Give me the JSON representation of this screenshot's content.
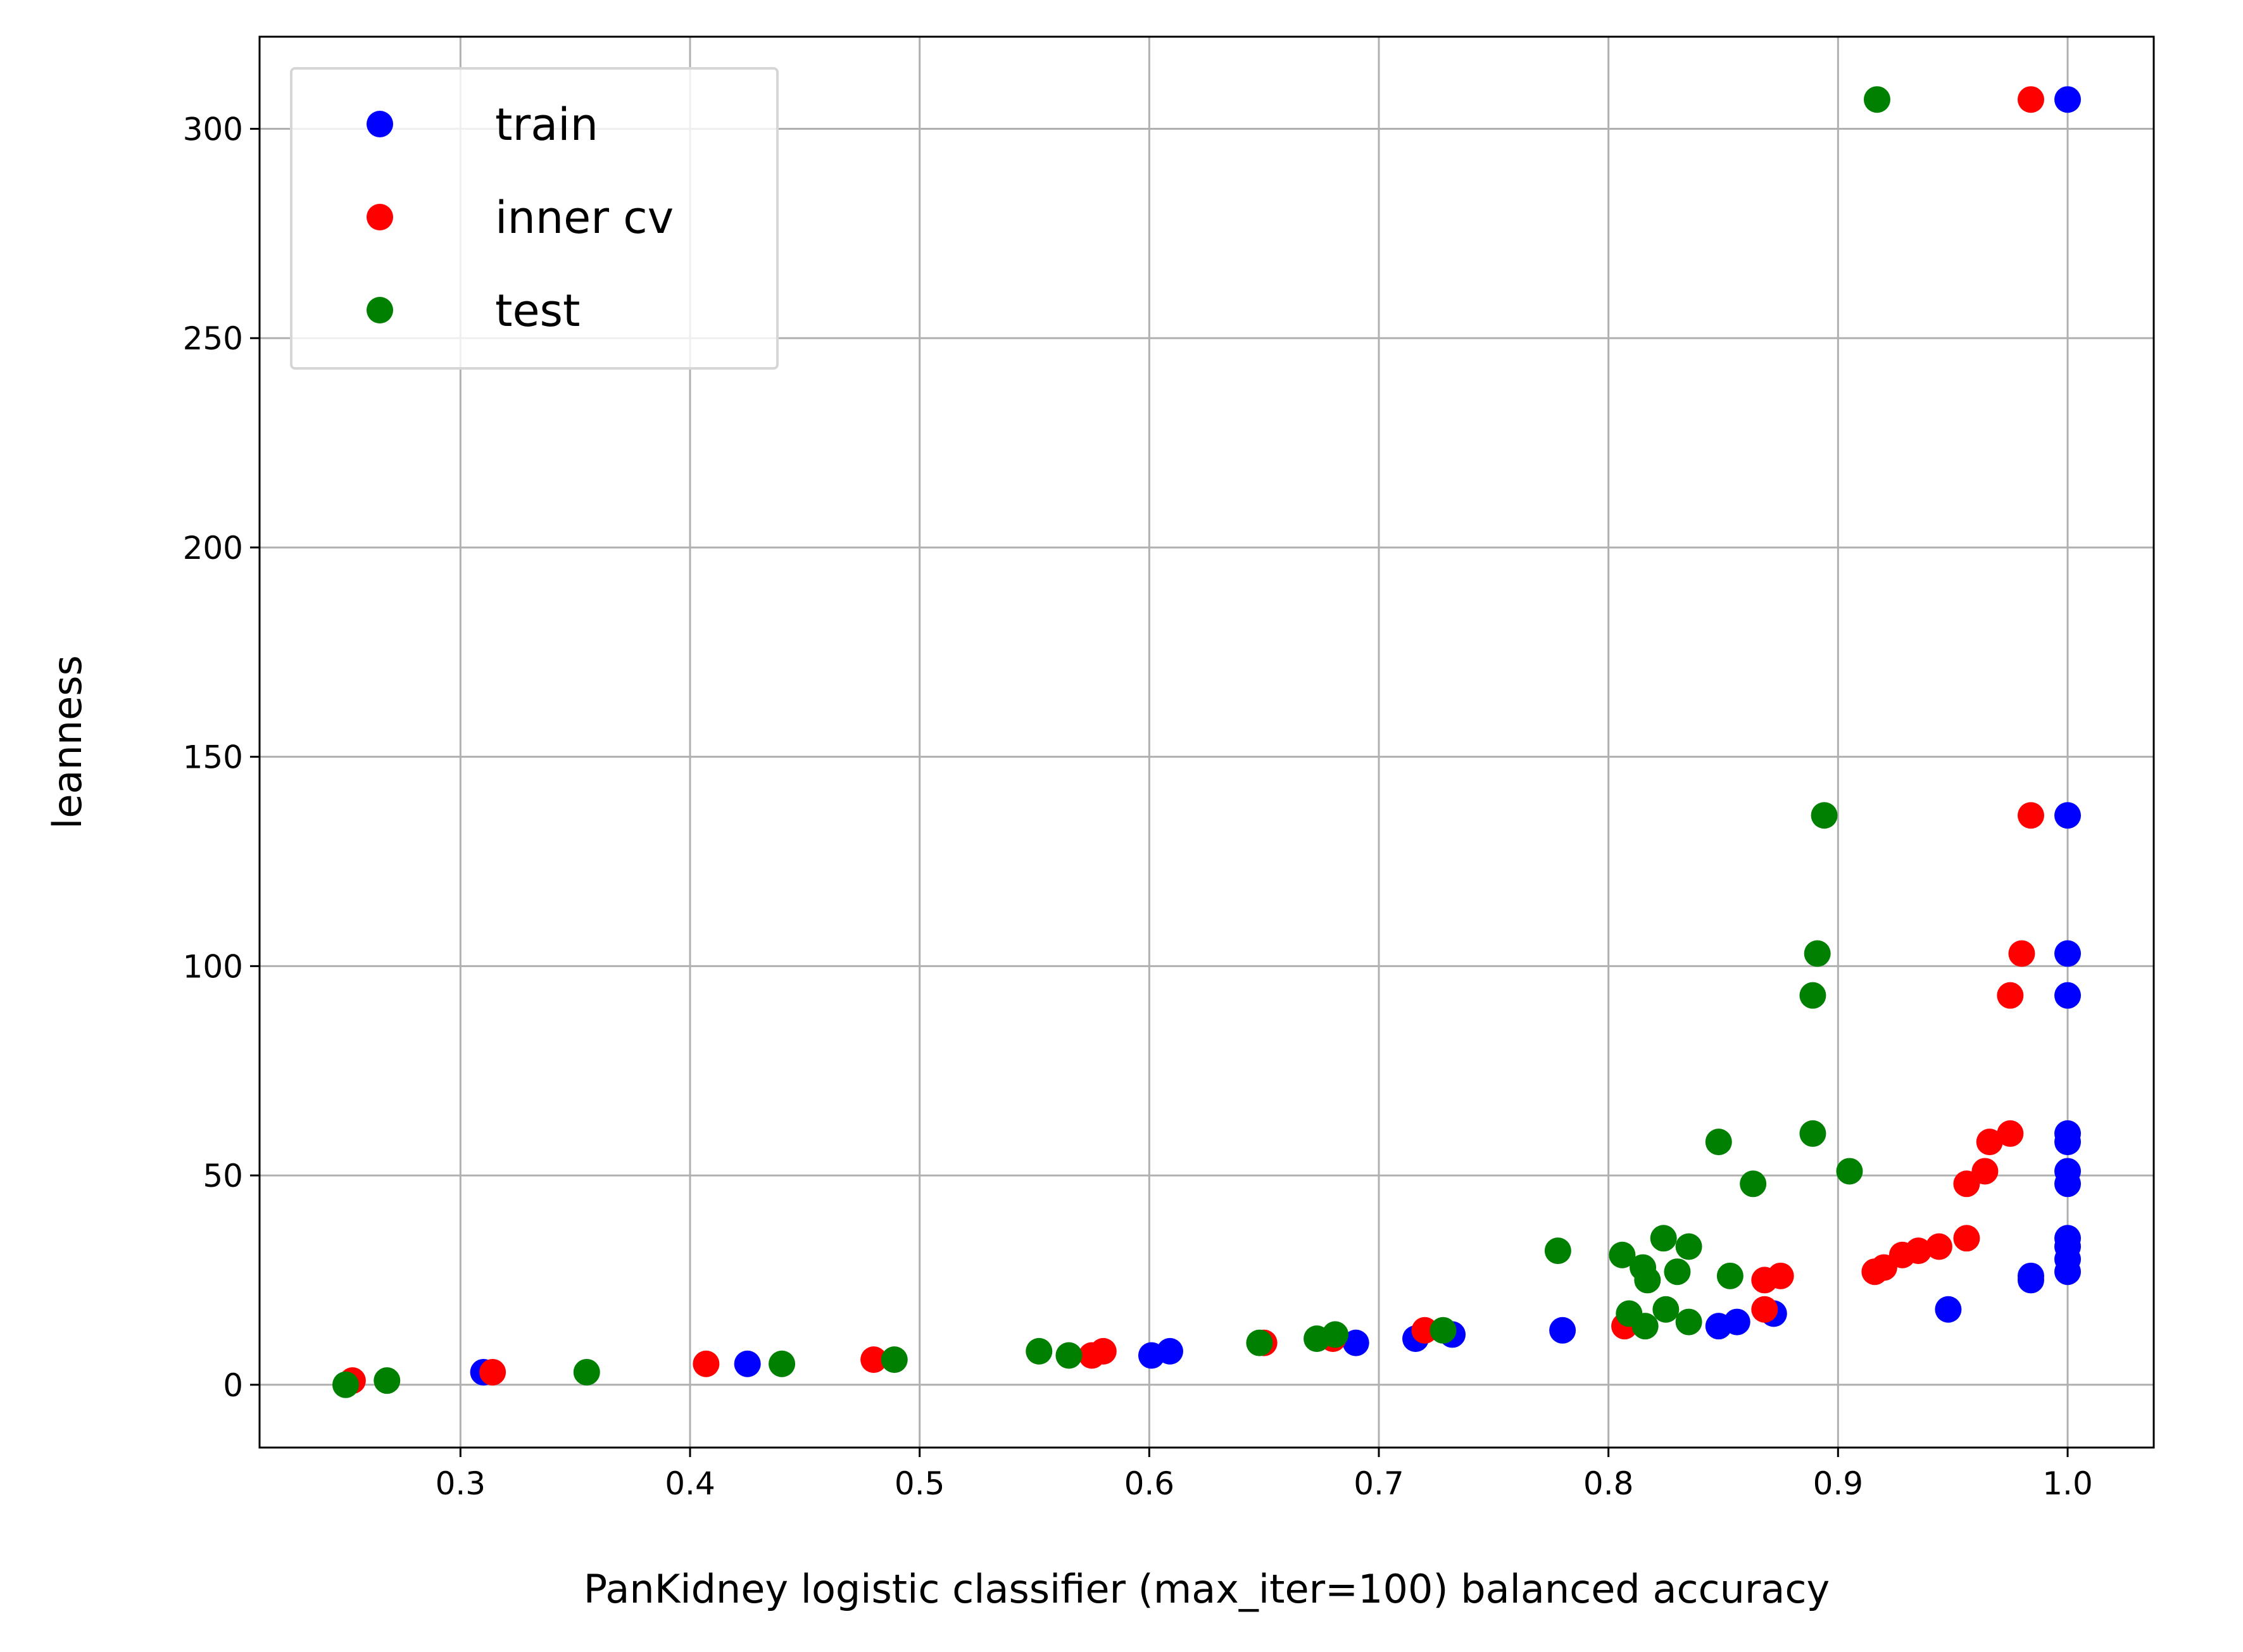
{
  "chart_data": {
    "type": "scatter",
    "title": "",
    "xlabel": "PanKidney logistic classifier (max_iter=100) balanced accuracy",
    "ylabel": "leanness",
    "xlim": [
      0.2125,
      1.0375
    ],
    "ylim": [
      -15,
      322
    ],
    "xticks": [
      "0.3",
      "0.4",
      "0.5",
      "0.6",
      "0.7",
      "0.8",
      "0.9",
      "1.0"
    ],
    "yticks": [
      "0",
      "50",
      "100",
      "150",
      "200",
      "250",
      "300"
    ],
    "grid": true,
    "legend_position": "top-left",
    "series": [
      {
        "name": "train",
        "color": "#0000ff",
        "points": [
          [
            0.31,
            3
          ],
          [
            0.425,
            5
          ],
          [
            0.601,
            7
          ],
          [
            0.609,
            8
          ],
          [
            0.69,
            10
          ],
          [
            0.716,
            11
          ],
          [
            0.732,
            12
          ],
          [
            0.78,
            13
          ],
          [
            0.848,
            14
          ],
          [
            0.856,
            15
          ],
          [
            0.872,
            17
          ],
          [
            0.948,
            18
          ],
          [
            0.984,
            25
          ],
          [
            0.984,
            26
          ],
          [
            1.0,
            27
          ],
          [
            1.0,
            30
          ],
          [
            1.0,
            33
          ],
          [
            1.0,
            35
          ],
          [
            1.0,
            48
          ],
          [
            1.0,
            51
          ],
          [
            1.0,
            58
          ],
          [
            1.0,
            60
          ],
          [
            1.0,
            93
          ],
          [
            1.0,
            103
          ],
          [
            1.0,
            136
          ],
          [
            1.0,
            307
          ]
        ]
      },
      {
        "name": "inner cv",
        "color": "#ff0000",
        "points": [
          [
            0.253,
            1
          ],
          [
            0.314,
            3
          ],
          [
            0.407,
            5
          ],
          [
            0.48,
            6
          ],
          [
            0.575,
            7
          ],
          [
            0.58,
            8
          ],
          [
            0.65,
            10
          ],
          [
            0.68,
            11
          ],
          [
            0.72,
            13
          ],
          [
            0.807,
            14
          ],
          [
            0.868,
            18
          ],
          [
            0.868,
            25
          ],
          [
            0.875,
            26
          ],
          [
            0.916,
            27
          ],
          [
            0.92,
            28
          ],
          [
            0.928,
            31
          ],
          [
            0.935,
            32
          ],
          [
            0.944,
            33
          ],
          [
            0.956,
            35
          ],
          [
            0.956,
            48
          ],
          [
            0.964,
            51
          ],
          [
            0.966,
            58
          ],
          [
            0.975,
            60
          ],
          [
            0.975,
            93
          ],
          [
            0.98,
            103
          ],
          [
            0.984,
            136
          ],
          [
            0.984,
            307
          ]
        ]
      },
      {
        "name": "test",
        "color": "#008000",
        "points": [
          [
            0.25,
            0
          ],
          [
            0.268,
            1
          ],
          [
            0.355,
            3
          ],
          [
            0.44,
            5
          ],
          [
            0.489,
            6
          ],
          [
            0.552,
            8
          ],
          [
            0.565,
            7
          ],
          [
            0.648,
            10
          ],
          [
            0.673,
            11
          ],
          [
            0.681,
            12
          ],
          [
            0.728,
            13
          ],
          [
            0.778,
            32
          ],
          [
            0.806,
            31
          ],
          [
            0.809,
            17
          ],
          [
            0.815,
            28
          ],
          [
            0.816,
            14
          ],
          [
            0.817,
            25
          ],
          [
            0.824,
            35
          ],
          [
            0.825,
            18
          ],
          [
            0.83,
            27
          ],
          [
            0.835,
            15
          ],
          [
            0.835,
            33
          ],
          [
            0.848,
            58
          ],
          [
            0.853,
            26
          ],
          [
            0.863,
            48
          ],
          [
            0.889,
            60
          ],
          [
            0.889,
            93
          ],
          [
            0.891,
            103
          ],
          [
            0.894,
            136
          ],
          [
            0.905,
            51
          ],
          [
            0.917,
            307
          ]
        ]
      }
    ]
  }
}
